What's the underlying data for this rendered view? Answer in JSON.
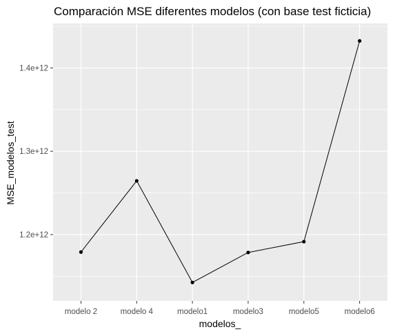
{
  "chart_data": {
    "type": "line",
    "title": "Comparación MSE diferentes modelos (con base test ficticia)",
    "xlabel": "modelos_",
    "ylabel": "MSE_modelos_test",
    "categories": [
      "modelo 2",
      "modelo 4",
      "modelo1",
      "modelo3",
      "modelo5",
      "modelo6"
    ],
    "series": [
      {
        "values": [
          1179000000000.0,
          1264500000000.0,
          1142500000000.0,
          1178500000000.0,
          1191500000000.0,
          1432500000000.0
        ]
      }
    ],
    "ylim": [
      1120400000000.0,
      1453400000000.0
    ],
    "y_ticks": [
      {
        "value": 1200000000000.0,
        "label": "1.2e+12"
      },
      {
        "value": 1300000000000.0,
        "label": "1.3e+12"
      },
      {
        "value": 1400000000000.0,
        "label": "1.4e+12"
      }
    ],
    "grid": true,
    "colors": {
      "panel_background": "#ebebeb",
      "grid_major": "#ffffff",
      "line": "#000000",
      "point": "#000000",
      "tick_text": "#4d4d4d"
    }
  }
}
